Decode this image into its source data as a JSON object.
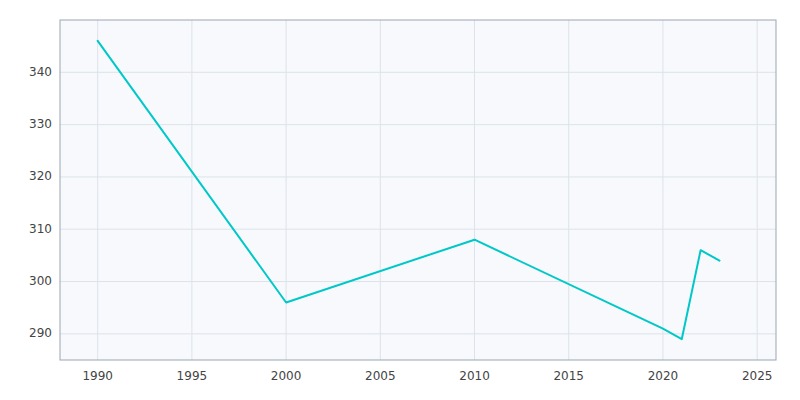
{
  "chart_data": {
    "type": "line",
    "x": [
      1990,
      2000,
      2010,
      2020,
      2021,
      2022,
      2023
    ],
    "values": [
      346,
      296,
      308,
      291,
      289,
      306,
      304
    ],
    "color": "#00C8C8",
    "xlim": [
      1988,
      2026
    ],
    "ylim": [
      285,
      350
    ],
    "xticks": [
      1990,
      1995,
      2000,
      2005,
      2010,
      2015,
      2020,
      2025
    ],
    "yticks": [
      290,
      300,
      310,
      320,
      330,
      340
    ],
    "grid": true
  }
}
